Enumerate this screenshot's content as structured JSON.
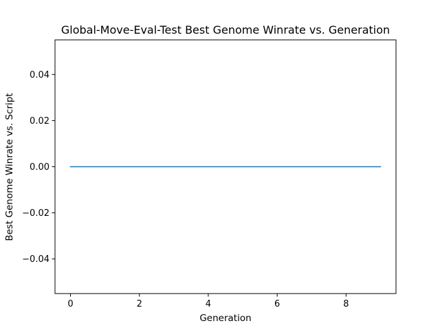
{
  "chart_data": {
    "type": "line",
    "title": "Global-Move-Eval-Test Best Genome Winrate vs. Generation",
    "xlabel": "Generation",
    "ylabel": "Best Genome Winrate vs. Script",
    "xlim": [
      -0.45,
      9.45
    ],
    "ylim": [
      -0.055,
      0.055
    ],
    "xticks": [
      0,
      2,
      4,
      6,
      8
    ],
    "yticks": [
      0.04,
      0.02,
      0.0,
      -0.02,
      -0.04
    ],
    "xtick_labels": [
      "0",
      "2",
      "4",
      "6",
      "8"
    ],
    "ytick_labels": [
      "0.04",
      "0.02",
      "0.00",
      "−0.02",
      "−0.04"
    ],
    "grid": false,
    "legend": "none",
    "series": [
      {
        "color": "#1f77b4",
        "x": [
          0,
          1,
          2,
          3,
          4,
          5,
          6,
          7,
          8,
          9
        ],
        "y": [
          0,
          0,
          0,
          0,
          0,
          0,
          0,
          0,
          0,
          0
        ]
      }
    ]
  }
}
